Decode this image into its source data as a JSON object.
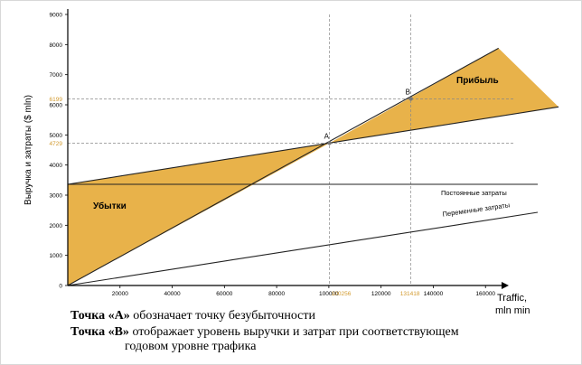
{
  "chart_data": {
    "type": "area",
    "ylabel": "Выручка и затраты ($ mln)",
    "xlabel_line1": "Traffic,",
    "xlabel_line2": "mln min",
    "xlim": [
      0,
      180000
    ],
    "ylim": [
      0,
      9000
    ],
    "x_ticks": [
      20000,
      40000,
      60000,
      80000,
      100000,
      120000,
      140000,
      160000
    ],
    "y_ticks": [
      0,
      1000,
      2000,
      3000,
      4000,
      5000,
      6000,
      7000,
      8000,
      9000
    ],
    "highlighted_x": [
      {
        "value": 100256,
        "label": "100256"
      },
      {
        "value": 131418,
        "label": "131418"
      }
    ],
    "highlighted_y": [
      {
        "value": 4729,
        "label": "4729"
      },
      {
        "value": 6199,
        "label": "6199"
      }
    ],
    "series": [
      {
        "name": "Постоянные затраты",
        "x": [
          0,
          180000
        ],
        "y": [
          3360,
          3360
        ]
      },
      {
        "name": "Переменные затраты",
        "x": [
          0,
          180000
        ],
        "y": [
          0,
          2430
        ]
      },
      {
        "x": [
          0,
          188000
        ],
        "y": [
          3360,
          5930
        ]
      },
      {
        "x": [
          0,
          165000
        ],
        "y": [
          0,
          7880
        ]
      }
    ],
    "points": [
      {
        "label": "A",
        "x": 100256,
        "y": 4729
      },
      {
        "label": "B",
        "x": 131418,
        "y": 6199
      }
    ],
    "regions": [
      {
        "label": "Убытки",
        "color": "#e8b24a"
      },
      {
        "label": "Прибыль",
        "color": "#e8b24a"
      }
    ],
    "colors": {
      "fill": "#e8b24a",
      "highlight_text": "#d29a2e",
      "line": "#222222",
      "guide": "#888888"
    }
  },
  "captions": {
    "a_bold": "Точка «А»",
    "a_text": " обозначает точку безубыточности",
    "b_bold": "Точка «В»",
    "b_text": " отображает уровень выручки и затрат при соответствующем",
    "b_text2": "годовом уровне трафика"
  }
}
